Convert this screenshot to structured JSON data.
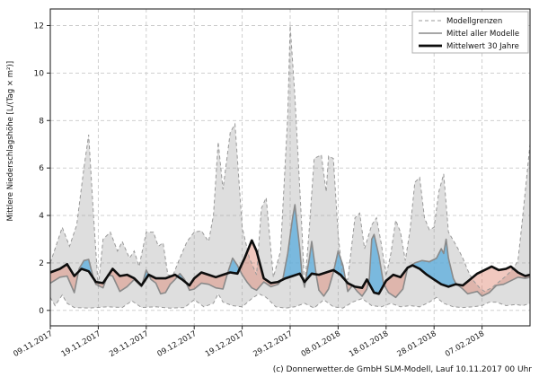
{
  "figure": {
    "footer": "(c) Donnerwetter.de GmbH SLM-Modell, Lauf 10.11.2017 00 Uhr",
    "ylabel": "Mittlere Niederschlagshöhe [L/(Tag × m²)]"
  },
  "legend": {
    "items": [
      {
        "label": "Modellgrenzen",
        "sample": "dashed-gray"
      },
      {
        "label": "Mittel aller Modelle",
        "sample": "solid-gray"
      },
      {
        "label": "Mittelwert 30 Jahre",
        "sample": "thick-black"
      }
    ]
  },
  "chart_data": {
    "type": "area",
    "x_unit": "days since 09.11.2017",
    "xlim": [
      0,
      100
    ],
    "ylim": [
      -0.65,
      12.7
    ],
    "grid": true,
    "yticks": [
      0,
      2,
      4,
      6,
      8,
      10,
      12
    ],
    "xticks": [
      {
        "day": 0,
        "label": "09.11.2017"
      },
      {
        "day": 10,
        "label": "19.11.2017"
      },
      {
        "day": 20,
        "label": "29.11.2017"
      },
      {
        "day": 30,
        "label": "09.12.2017"
      },
      {
        "day": 40,
        "label": "19.12.2017"
      },
      {
        "day": 50,
        "label": "29.12.2017"
      },
      {
        "day": 60,
        "label": "08.01.2018"
      },
      {
        "day": 70,
        "label": "18.01.2018"
      },
      {
        "day": 80,
        "label": "28.01.2018"
      },
      {
        "day": 90,
        "label": "07.02.2018"
      }
    ],
    "colors": {
      "band_fill": "rgba(160,160,160,0.35)",
      "band_edge": "#999999",
      "above_normal_fill": "rgba(96,175,221,0.80)",
      "below_normal_fill": "rgba(222,123,102,0.42)",
      "model_mean_line": "#8a8a8a",
      "climate_mean_line": "#0d0d0d",
      "grid_line": "#c9c9c9",
      "spine": "#262626",
      "tick_text": "#1a1a1a"
    },
    "series": [
      {
        "name": "Modellgrenzen (Maximum)",
        "role": "band_max",
        "points": [
          [
            0,
            2.0
          ],
          [
            1,
            2.6
          ],
          [
            2.5,
            3.5
          ],
          [
            4,
            2.7
          ],
          [
            5.5,
            3.6
          ],
          [
            7,
            6.0
          ],
          [
            8,
            7.4
          ],
          [
            9,
            4.0
          ],
          [
            10,
            0.95
          ],
          [
            11,
            3.0
          ],
          [
            12.5,
            3.3
          ],
          [
            14,
            2.5
          ],
          [
            15,
            2.9
          ],
          [
            16.5,
            2.2
          ],
          [
            17.5,
            2.5
          ],
          [
            18.5,
            1.85
          ],
          [
            20,
            3.3
          ],
          [
            21.5,
            3.3
          ],
          [
            22.5,
            2.7
          ],
          [
            23.5,
            2.85
          ],
          [
            24.5,
            1.5
          ],
          [
            25.5,
            1.45
          ],
          [
            27,
            2.2
          ],
          [
            28.5,
            2.9
          ],
          [
            30,
            3.3
          ],
          [
            31.5,
            3.35
          ],
          [
            33,
            2.9
          ],
          [
            34,
            4.0
          ],
          [
            35,
            7.1
          ],
          [
            36,
            5.1
          ],
          [
            37.5,
            7.5
          ],
          [
            38.5,
            7.85
          ],
          [
            40,
            3.5
          ],
          [
            41.5,
            2.2
          ],
          [
            43,
            1.5
          ],
          [
            44,
            4.3
          ],
          [
            45,
            4.75
          ],
          [
            46.5,
            1.4
          ],
          [
            48,
            2.5
          ],
          [
            49.5,
            8.2
          ],
          [
            50,
            12.0
          ],
          [
            51,
            9.0
          ],
          [
            52.5,
            3.2
          ],
          [
            53,
            0.9
          ],
          [
            54,
            3.5
          ],
          [
            55,
            6.4
          ],
          [
            56.5,
            6.55
          ],
          [
            57.5,
            5.0
          ],
          [
            58,
            6.5
          ],
          [
            59,
            6.4
          ],
          [
            60,
            3.2
          ],
          [
            61,
            1.35
          ],
          [
            62,
            1.3
          ],
          [
            63.5,
            3.9
          ],
          [
            64.5,
            4.1
          ],
          [
            65.5,
            2.6
          ],
          [
            67,
            3.6
          ],
          [
            68,
            3.9
          ],
          [
            69,
            2.8
          ],
          [
            70,
            1.45
          ],
          [
            71,
            2.4
          ],
          [
            72,
            3.8
          ],
          [
            73,
            3.3
          ],
          [
            74,
            2.1
          ],
          [
            75,
            3.4
          ],
          [
            76,
            5.4
          ],
          [
            77,
            5.6
          ],
          [
            78,
            3.9
          ],
          [
            79,
            3.4
          ],
          [
            80,
            3.5
          ],
          [
            81,
            5.0
          ],
          [
            82,
            5.75
          ],
          [
            83,
            3.3
          ],
          [
            84,
            2.95
          ],
          [
            85,
            2.6
          ],
          [
            86,
            2.2
          ],
          [
            87,
            1.7
          ],
          [
            88,
            1.3
          ],
          [
            89.5,
            0.95
          ],
          [
            90.5,
            0.8
          ],
          [
            92,
            0.95
          ],
          [
            93.5,
            1.2
          ],
          [
            95,
            1.45
          ],
          [
            96.5,
            1.75
          ],
          [
            97.5,
            2.1
          ],
          [
            98.5,
            4.0
          ],
          [
            100,
            7.0
          ]
        ]
      },
      {
        "name": "Modellgrenzen (Minimum)",
        "role": "band_min",
        "points": [
          [
            0,
            0.55
          ],
          [
            1,
            0.2
          ],
          [
            2.5,
            0.65
          ],
          [
            3.5,
            0.3
          ],
          [
            5,
            0.12
          ],
          [
            8,
            0.1
          ],
          [
            12,
            0.15
          ],
          [
            15,
            0.12
          ],
          [
            17,
            0.4
          ],
          [
            19,
            0.12
          ],
          [
            22,
            0.15
          ],
          [
            25,
            0.1
          ],
          [
            28,
            0.12
          ],
          [
            30,
            0.45
          ],
          [
            32,
            0.15
          ],
          [
            34,
            0.3
          ],
          [
            35,
            0.7
          ],
          [
            36,
            0.35
          ],
          [
            38,
            0.2
          ],
          [
            40,
            0.15
          ],
          [
            42,
            0.5
          ],
          [
            43.5,
            0.7
          ],
          [
            45,
            0.55
          ],
          [
            47,
            0.15
          ],
          [
            49,
            0.1
          ],
          [
            51,
            0.15
          ],
          [
            53,
            0.3
          ],
          [
            55,
            0.1
          ],
          [
            57,
            0.45
          ],
          [
            59,
            0.15
          ],
          [
            61,
            0.1
          ],
          [
            63,
            0.35
          ],
          [
            65,
            0.5
          ],
          [
            67,
            0.2
          ],
          [
            69,
            0.15
          ],
          [
            71,
            0.3
          ],
          [
            73,
            0.15
          ],
          [
            75,
            0.2
          ],
          [
            77,
            0.15
          ],
          [
            79,
            0.35
          ],
          [
            80.5,
            0.55
          ],
          [
            82,
            0.3
          ],
          [
            84,
            0.15
          ],
          [
            86,
            0.12
          ],
          [
            88,
            0.15
          ],
          [
            90,
            0.2
          ],
          [
            91.5,
            0.35
          ],
          [
            93,
            0.35
          ],
          [
            95,
            0.2
          ],
          [
            97,
            0.25
          ],
          [
            98.5,
            0.2
          ],
          [
            100,
            0.3
          ]
        ]
      },
      {
        "name": "Mittel aller Modelle",
        "role": "model_mean",
        "points": [
          [
            0,
            1.15
          ],
          [
            2,
            1.4
          ],
          [
            3.5,
            1.45
          ],
          [
            5,
            0.75
          ],
          [
            6,
            1.75
          ],
          [
            7,
            2.1
          ],
          [
            8,
            2.15
          ],
          [
            9,
            1.35
          ],
          [
            9.5,
            1.1
          ],
          [
            11,
            0.95
          ],
          [
            12,
            1.5
          ],
          [
            13,
            1.45
          ],
          [
            14.5,
            0.8
          ],
          [
            16,
            1.0
          ],
          [
            17.5,
            1.3
          ],
          [
            19,
            1.0
          ],
          [
            20,
            1.7
          ],
          [
            21,
            1.3
          ],
          [
            22,
            1.15
          ],
          [
            23,
            0.7
          ],
          [
            24,
            0.75
          ],
          [
            25,
            1.1
          ],
          [
            26,
            1.3
          ],
          [
            27,
            1.55
          ],
          [
            28,
            1.3
          ],
          [
            29,
            0.85
          ],
          [
            30,
            0.9
          ],
          [
            31.5,
            1.15
          ],
          [
            33,
            1.1
          ],
          [
            34.5,
            0.95
          ],
          [
            36,
            0.9
          ],
          [
            37,
            1.6
          ],
          [
            38,
            2.2
          ],
          [
            39,
            1.9
          ],
          [
            40,
            1.5
          ],
          [
            41,
            1.2
          ],
          [
            42,
            0.95
          ],
          [
            43,
            0.85
          ],
          [
            44.5,
            1.2
          ],
          [
            46,
            1.0
          ],
          [
            47.5,
            1.1
          ],
          [
            48.5,
            1.35
          ],
          [
            49.5,
            2.4
          ],
          [
            50.5,
            3.9
          ],
          [
            51,
            4.45
          ],
          [
            52,
            2.6
          ],
          [
            52.5,
            1.4
          ],
          [
            53,
            1.0
          ],
          [
            54,
            2.2
          ],
          [
            54.5,
            2.9
          ],
          [
            55.5,
            1.4
          ],
          [
            56,
            0.85
          ],
          [
            57,
            0.6
          ],
          [
            58,
            0.9
          ],
          [
            59,
            1.6
          ],
          [
            60,
            2.5
          ],
          [
            61,
            1.9
          ],
          [
            62,
            0.8
          ],
          [
            63,
            1.05
          ],
          [
            64,
            0.8
          ],
          [
            65,
            0.6
          ],
          [
            66,
            0.9
          ],
          [
            66.5,
            1.35
          ],
          [
            67,
            3.0
          ],
          [
            67.5,
            3.2
          ],
          [
            68.5,
            2.3
          ],
          [
            69.5,
            1.1
          ],
          [
            70.5,
            0.75
          ],
          [
            72,
            0.55
          ],
          [
            73.5,
            0.9
          ],
          [
            74.5,
            1.8
          ],
          [
            76,
            2.0
          ],
          [
            77.5,
            2.1
          ],
          [
            79,
            2.05
          ],
          [
            80.5,
            2.2
          ],
          [
            81.5,
            2.6
          ],
          [
            82,
            2.4
          ],
          [
            82.5,
            3.0
          ],
          [
            83,
            2.2
          ],
          [
            84,
            1.35
          ],
          [
            84.5,
            1.15
          ],
          [
            86,
            0.9
          ],
          [
            87,
            0.7
          ],
          [
            88,
            0.75
          ],
          [
            89,
            0.8
          ],
          [
            90,
            0.6
          ],
          [
            91.5,
            0.75
          ],
          [
            93,
            1.05
          ],
          [
            94.5,
            1.1
          ],
          [
            96,
            1.25
          ],
          [
            97.5,
            1.4
          ],
          [
            99,
            1.35
          ],
          [
            100,
            1.4
          ]
        ]
      },
      {
        "name": "Mittelwert 30 Jahre",
        "role": "climate_mean",
        "points": [
          [
            0,
            1.6
          ],
          [
            2,
            1.75
          ],
          [
            3.5,
            1.95
          ],
          [
            5,
            1.45
          ],
          [
            6.5,
            1.75
          ],
          [
            8,
            1.65
          ],
          [
            9.5,
            1.2
          ],
          [
            11,
            1.15
          ],
          [
            13,
            1.75
          ],
          [
            14.5,
            1.45
          ],
          [
            16,
            1.5
          ],
          [
            17.5,
            1.35
          ],
          [
            19,
            1.05
          ],
          [
            20.5,
            1.5
          ],
          [
            22,
            1.35
          ],
          [
            24,
            1.35
          ],
          [
            26,
            1.5
          ],
          [
            27.5,
            1.3
          ],
          [
            29,
            1.05
          ],
          [
            30,
            1.35
          ],
          [
            31.5,
            1.6
          ],
          [
            33,
            1.5
          ],
          [
            34.5,
            1.4
          ],
          [
            36,
            1.5
          ],
          [
            37.5,
            1.6
          ],
          [
            39,
            1.55
          ],
          [
            40.5,
            2.2
          ],
          [
            42,
            2.95
          ],
          [
            43,
            2.5
          ],
          [
            44.5,
            1.35
          ],
          [
            46,
            1.15
          ],
          [
            47.5,
            1.2
          ],
          [
            49,
            1.35
          ],
          [
            50.5,
            1.45
          ],
          [
            52,
            1.55
          ],
          [
            53,
            1.2
          ],
          [
            54.5,
            1.55
          ],
          [
            56,
            1.5
          ],
          [
            57.5,
            1.6
          ],
          [
            59,
            1.7
          ],
          [
            60.5,
            1.5
          ],
          [
            62,
            1.15
          ],
          [
            63.5,
            1.0
          ],
          [
            65,
            0.95
          ],
          [
            66,
            1.3
          ],
          [
            67.5,
            0.75
          ],
          [
            68.5,
            0.7
          ],
          [
            70,
            1.25
          ],
          [
            71.5,
            1.5
          ],
          [
            73,
            1.4
          ],
          [
            74.5,
            1.8
          ],
          [
            75.5,
            1.9
          ],
          [
            77,
            1.75
          ],
          [
            78.5,
            1.5
          ],
          [
            80,
            1.3
          ],
          [
            81.5,
            1.1
          ],
          [
            83,
            1.0
          ],
          [
            84.5,
            1.1
          ],
          [
            86,
            1.05
          ],
          [
            87.5,
            1.3
          ],
          [
            89,
            1.55
          ],
          [
            90.5,
            1.7
          ],
          [
            92,
            1.85
          ],
          [
            93.5,
            1.7
          ],
          [
            95,
            1.75
          ],
          [
            96,
            1.85
          ],
          [
            97.5,
            1.6
          ],
          [
            99,
            1.45
          ],
          [
            100,
            1.5
          ]
        ]
      }
    ]
  }
}
